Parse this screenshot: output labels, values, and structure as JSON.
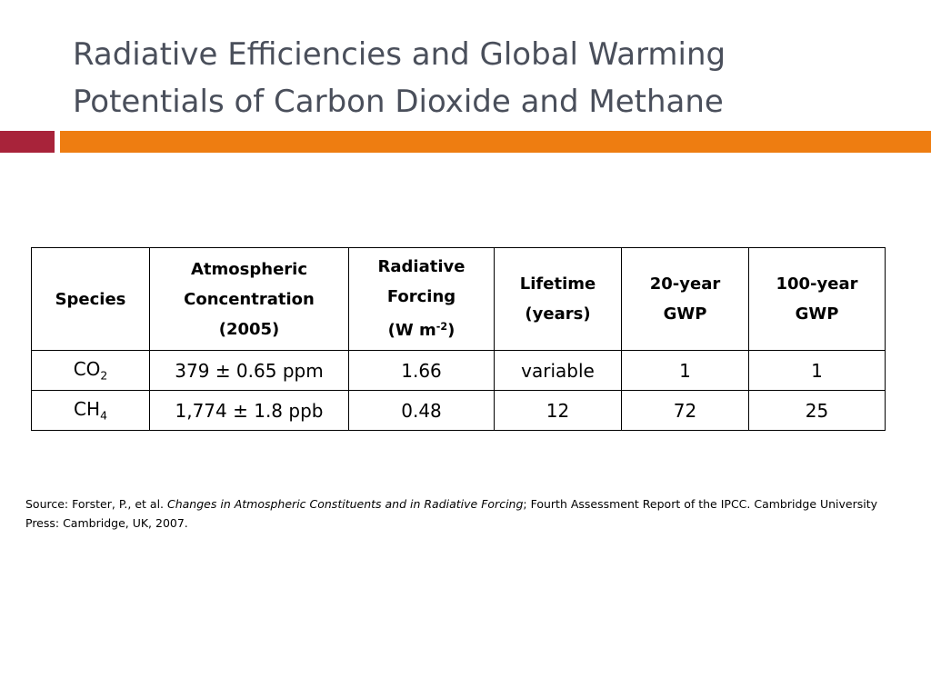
{
  "title": {
    "line1": "Radiative Efficiencies and Global Warming",
    "line2": "Potentials of Carbon Dioxide and Methane"
  },
  "colors": {
    "title_text": "#4a4f5b",
    "accent_red": "#a8233a",
    "accent_orange": "#ee7d11"
  },
  "table": {
    "headers": {
      "species": "Species",
      "concentration": {
        "line1": "Atmospheric",
        "line2": "Concentration",
        "line3": "(2005)"
      },
      "forcing": {
        "line1": "Radiative",
        "line2": "Forcing",
        "line3_pre": "(W m",
        "line3_sup": "-2",
        "line3_post": ")"
      },
      "lifetime": {
        "line1": "Lifetime",
        "line2": "(years)"
      },
      "gwp20": {
        "line1": "20-year",
        "line2": "GWP"
      },
      "gwp100": {
        "line1": "100-year",
        "line2": "GWP"
      }
    },
    "rows": [
      {
        "species_base": "CO",
        "species_sub": "2",
        "concentration": "379 ± 0.65 ppm",
        "forcing": "1.66",
        "lifetime": "variable",
        "gwp20": "1",
        "gwp100": "1"
      },
      {
        "species_base": "CH",
        "species_sub": "4",
        "concentration": "1,774 ± 1.8 ppb",
        "forcing": "0.48",
        "lifetime": "12",
        "gwp20": "72",
        "gwp100": "25"
      }
    ]
  },
  "source": {
    "prefix": "Source:  Forster, P., et al. ",
    "italic": "Changes in Atmospheric Constituents and in Radiative Forcing",
    "suffix": "; Fourth Assessment Report of the IPCC. Cambridge University Press: Cambridge, UK, 2007."
  }
}
